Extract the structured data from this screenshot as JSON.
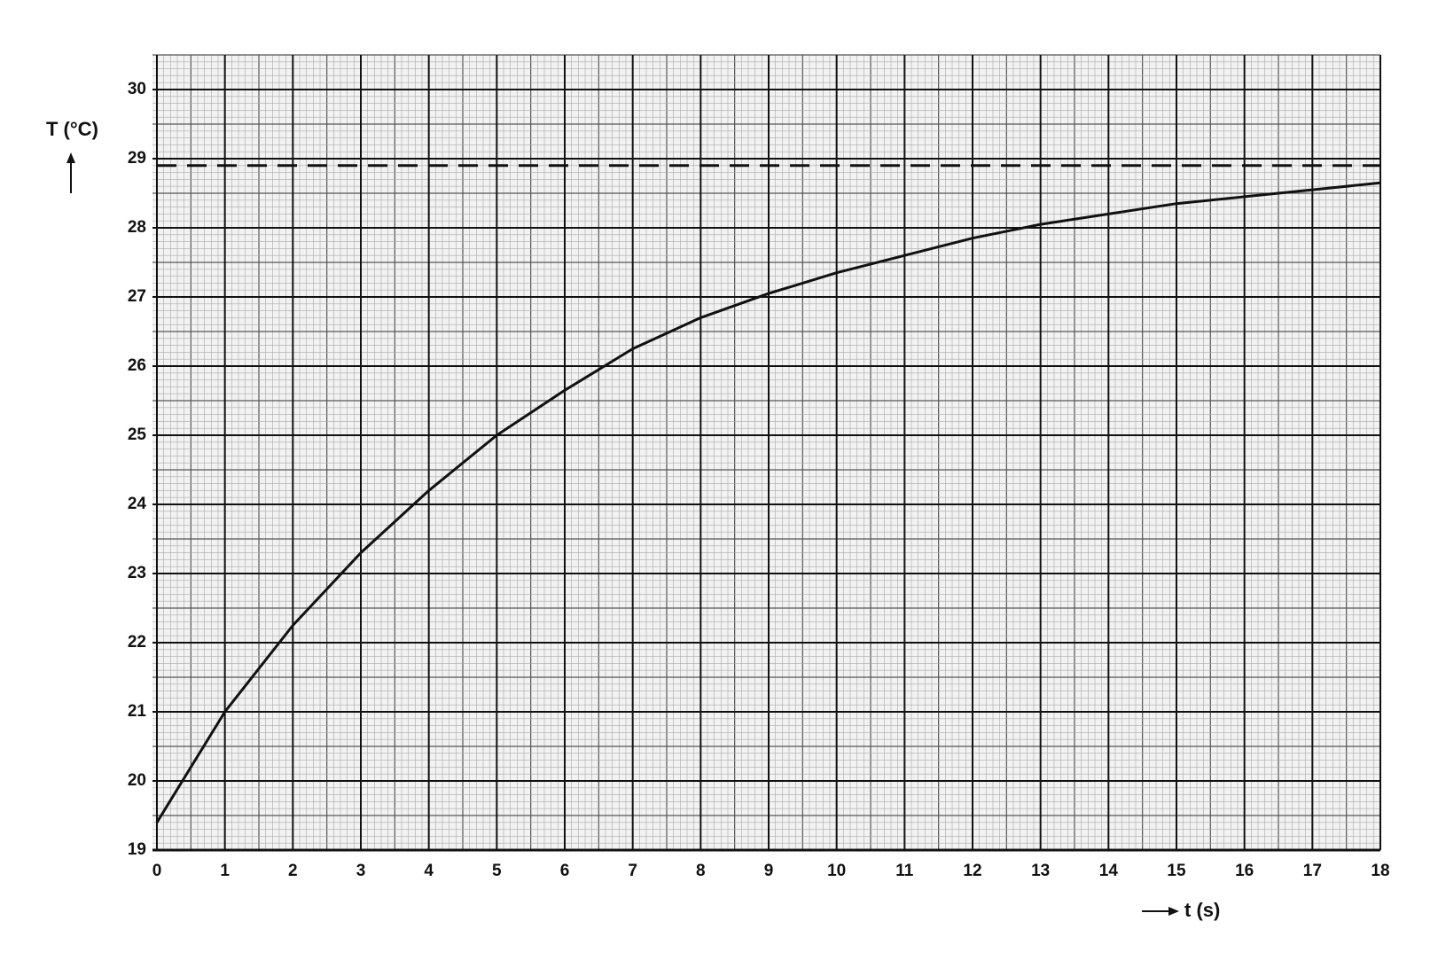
{
  "chart_data": {
    "type": "line",
    "y_label": "T (°C)",
    "x_label": "t (s)",
    "x": [
      0,
      1,
      2,
      3,
      4,
      5,
      6,
      7,
      8,
      9,
      10,
      11,
      12,
      13,
      14,
      15,
      16,
      17,
      18
    ],
    "values": [
      19.4,
      21.0,
      22.25,
      23.3,
      24.2,
      25.0,
      25.65,
      26.25,
      26.7,
      27.05,
      27.35,
      27.6,
      27.85,
      28.05,
      28.2,
      28.35,
      28.45,
      28.55,
      28.65
    ],
    "color": "#111111",
    "reference_line": 28.9,
    "xlim": [
      0,
      18
    ],
    "ylim": [
      19,
      30.5
    ],
    "xticks": [
      0,
      1,
      2,
      3,
      4,
      5,
      6,
      7,
      8,
      9,
      10,
      11,
      12,
      13,
      14,
      15,
      16,
      17,
      18
    ],
    "yticks": [
      19,
      20,
      21,
      22,
      23,
      24,
      25,
      26,
      27,
      28,
      29,
      30
    ],
    "grid": true
  }
}
